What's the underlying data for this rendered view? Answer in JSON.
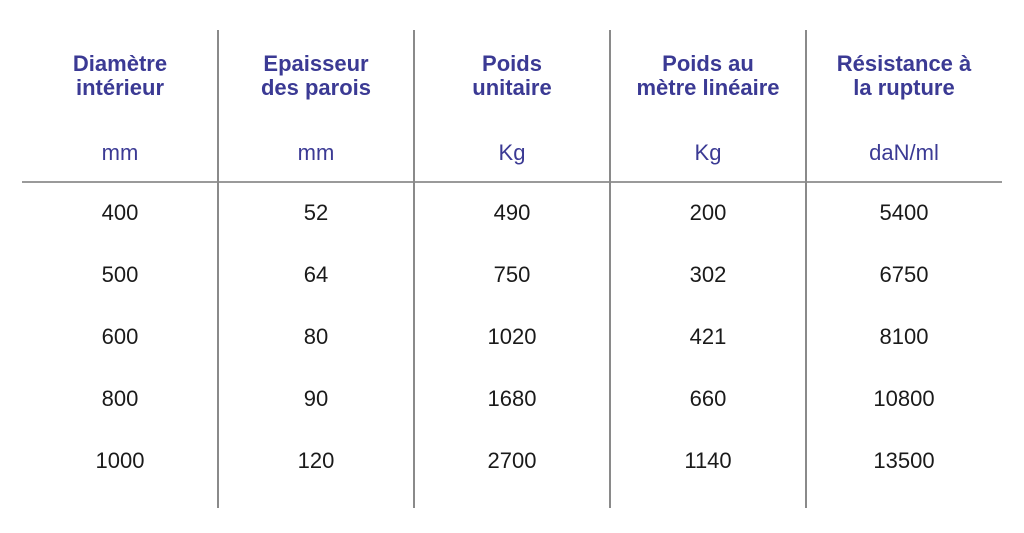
{
  "columns": [
    {
      "header_line1": "Diamètre",
      "header_line2": "intérieur",
      "unit": "mm",
      "values": [
        "400",
        "500",
        "600",
        "800",
        "1000"
      ]
    },
    {
      "header_line1": "Epaisseur",
      "header_line2": "des parois",
      "unit": "mm",
      "values": [
        "52",
        "64",
        "80",
        "90",
        "120"
      ]
    },
    {
      "header_line1": "Poids",
      "header_line2": "unitaire",
      "unit": "Kg",
      "values": [
        "490",
        "750",
        "1020",
        "1680",
        "2700"
      ]
    },
    {
      "header_line1": "Poids au",
      "header_line2": "mètre linéaire",
      "unit": "Kg",
      "values": [
        "200",
        "302",
        "421",
        "660",
        "1140"
      ]
    },
    {
      "header_line1": "Résistance à",
      "header_line2": "la rupture",
      "unit": "daN/ml",
      "values": [
        "5400",
        "6750",
        "8100",
        "10800",
        "13500"
      ]
    }
  ],
  "colors": {
    "header": "#3b3a94",
    "text": "#1a1a1a",
    "rule": "#8a8a8a"
  }
}
